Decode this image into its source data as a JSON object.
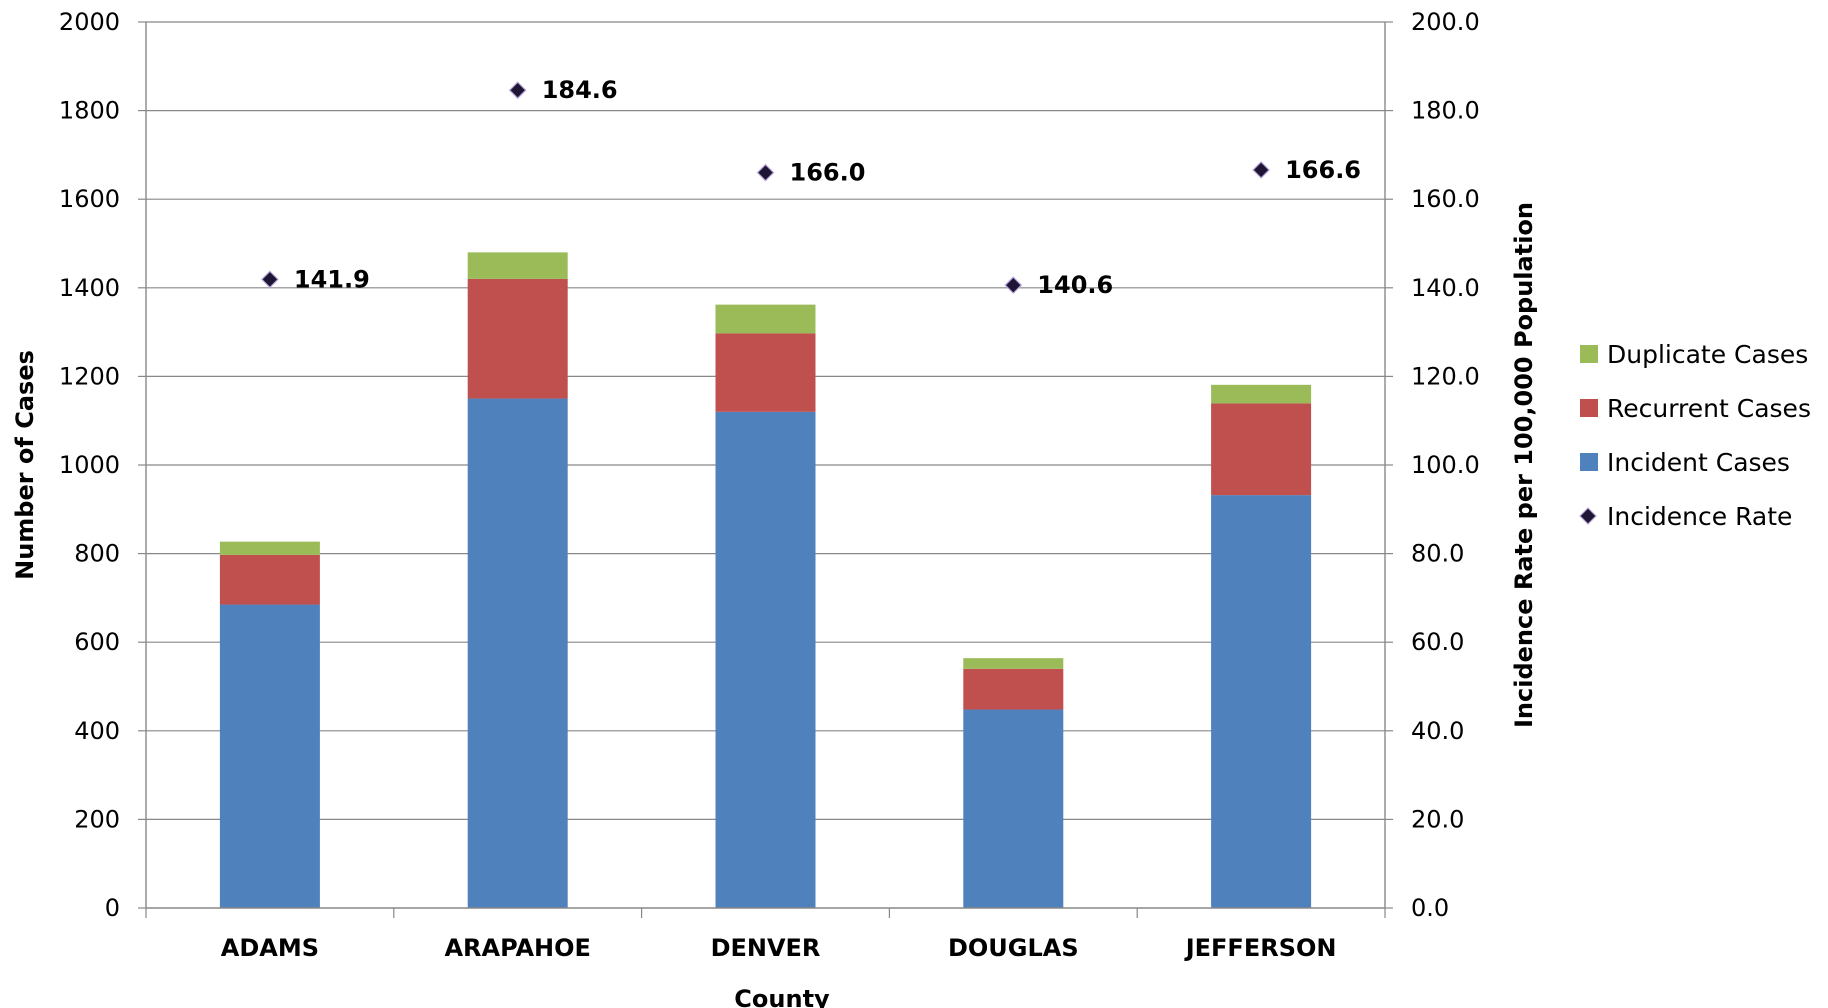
{
  "chart_data": {
    "type": "bar",
    "stacked": true,
    "xlabel": "County",
    "ylabel": "Number of Cases",
    "y2label": "Incidence Rate per 100,000 Population",
    "ylim": [
      0,
      2000
    ],
    "y2lim": [
      0,
      200
    ],
    "yticks": [
      "0",
      "200",
      "400",
      "600",
      "800",
      "1000",
      "1200",
      "1400",
      "1600",
      "1800",
      "2000"
    ],
    "y2ticks": [
      "0.0",
      "20.0",
      "40.0",
      "60.0",
      "80.0",
      "100.0",
      "120.0",
      "140.0",
      "160.0",
      "180.0",
      "200.0"
    ],
    "grid": true,
    "legend_position": "right",
    "categories": [
      "ADAMS",
      "ARAPAHOE",
      "DENVER",
      "DOUGLAS",
      "JEFFERSON"
    ],
    "series": [
      {
        "name": "Incident Cases",
        "kind": "bar",
        "axis": "left",
        "color": "#4f81bd",
        "values": [
          685,
          1150,
          1120,
          448,
          932
        ]
      },
      {
        "name": "Recurrent Cases",
        "kind": "bar",
        "axis": "left",
        "color": "#c0504d",
        "values": [
          112,
          270,
          177,
          92,
          207
        ]
      },
      {
        "name": "Duplicate Cases",
        "kind": "bar",
        "axis": "left",
        "color": "#9bbb59",
        "values": [
          30,
          60,
          65,
          24,
          42
        ]
      },
      {
        "name": "Incidence Rate",
        "kind": "marker",
        "axis": "right",
        "color": "#1f1534",
        "values": [
          141.9,
          184.6,
          166.0,
          140.6,
          166.6
        ],
        "labels": [
          "141.9",
          "184.6",
          "166.0",
          "140.6",
          "166.6"
        ]
      }
    ],
    "legend": [
      {
        "name": "Duplicate Cases",
        "marker": "square",
        "color": "#9bbb59"
      },
      {
        "name": "Recurrent Cases",
        "marker": "square",
        "color": "#c0504d"
      },
      {
        "name": "Incident Cases",
        "marker": "square",
        "color": "#4f81bd"
      },
      {
        "name": "Incidence Rate",
        "marker": "diamond",
        "color": "#1f1534"
      }
    ]
  }
}
